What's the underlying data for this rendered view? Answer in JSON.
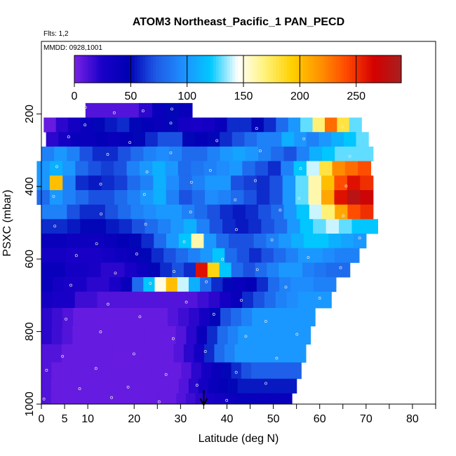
{
  "chart_data": {
    "type": "heatmap",
    "title": "ATOM3 Northeast_Pacific_1 PAN_PECD",
    "note_flights": "Flts: 1,2",
    "note_dates": "MMDD: 0928,1001",
    "xlabel": "Latitude (deg N)",
    "ylabel": "PSXC (mbar)",
    "xlim": [
      0,
      85
    ],
    "ylim": [
      1000,
      0
    ],
    "x_ticks": [
      0,
      5,
      10,
      20,
      30,
      40,
      50,
      60,
      70,
      80
    ],
    "y_ticks": [
      200,
      400,
      600,
      800,
      1000
    ],
    "colorbar": {
      "range": [
        0,
        290
      ],
      "ticks": [
        0,
        50,
        100,
        150,
        200,
        250
      ],
      "colors": [
        "#7a22e6",
        "#1a00c8",
        "#0000b4",
        "#1e5ae6",
        "#1e90ff",
        "#00c8ff",
        "#ffffff",
        "#fff27a",
        "#ffd000",
        "#ff9400",
        "#ff4800",
        "#d40000",
        "#a82020"
      ]
    },
    "arrow_latitude": 35,
    "rows": [
      {
        "p": 190,
        "x0": 9.5,
        "x1": 32.5,
        "v": [
          10,
          10,
          10,
          10,
          20,
          40,
          50,
          40
        ]
      },
      {
        "p": 230,
        "x0": 0.5,
        "x1": 69,
        "v": [
          5,
          20,
          30,
          40,
          50,
          55,
          60,
          50,
          45,
          40,
          50,
          30,
          25,
          30,
          40,
          60,
          60,
          50,
          60,
          80,
          100,
          130,
          170,
          230,
          180,
          130
        ]
      },
      {
        "p": 270,
        "x0": 1,
        "x1": 70.5,
        "v": [
          20,
          30,
          40,
          40,
          45,
          40,
          45,
          50,
          60,
          70,
          70,
          50,
          45,
          50,
          60,
          70,
          80,
          90,
          90,
          110,
          100,
          90,
          100,
          110,
          120,
          130
        ]
      },
      {
        "p": 310,
        "x0": 0,
        "x1": 71.5,
        "v": [
          90,
          100,
          90,
          70,
          60,
          60,
          70,
          80,
          90,
          95,
          90,
          80,
          80,
          90,
          100,
          105,
          100,
          90,
          80,
          70,
          90,
          110,
          120,
          130,
          130,
          130
        ]
      },
      {
        "p": 350,
        "x0": -1,
        "x1": 71,
        "v": [
          100,
          110,
          100,
          80,
          70,
          65,
          70,
          90,
          100,
          110,
          100,
          80,
          85,
          90,
          95,
          100,
          80,
          70,
          60,
          90,
          120,
          140,
          180,
          220,
          230,
          240
        ]
      },
      {
        "p": 390,
        "x0": -1,
        "x1": 71.5,
        "v": [
          100,
          200,
          90,
          60,
          55,
          60,
          65,
          80,
          90,
          110,
          95,
          80,
          90,
          100,
          100,
          70,
          65,
          60,
          70,
          100,
          130,
          160,
          200,
          240,
          260,
          250
        ]
      },
      {
        "p": 430,
        "x0": -1,
        "x1": 71.5,
        "v": [
          80,
          100,
          90,
          80,
          70,
          70,
          80,
          90,
          100,
          110,
          90,
          70,
          80,
          95,
          90,
          80,
          70,
          60,
          70,
          100,
          130,
          160,
          210,
          260,
          280,
          270
        ]
      },
      {
        "p": 470,
        "x0": 0,
        "x1": 71.5,
        "v": [
          90,
          90,
          70,
          60,
          60,
          70,
          80,
          90,
          95,
          100,
          100,
          90,
          80,
          70,
          60,
          55,
          60,
          70,
          80,
          100,
          120,
          140,
          170,
          210,
          240,
          250
        ]
      },
      {
        "p": 510,
        "x0": 0,
        "x1": 72.5,
        "v": [
          60,
          60,
          55,
          50,
          50,
          55,
          60,
          70,
          80,
          90,
          100,
          110,
          90,
          70,
          60,
          55,
          60,
          70,
          80,
          100,
          120,
          130,
          140,
          130,
          120,
          120
        ]
      },
      {
        "p": 550,
        "x0": 0,
        "x1": 70,
        "v": [
          40,
          40,
          35,
          35,
          35,
          40,
          45,
          50,
          60,
          80,
          100,
          120,
          160,
          100,
          80,
          70,
          70,
          80,
          90,
          100,
          110,
          120,
          120,
          110,
          105,
          100
        ]
      },
      {
        "p": 590,
        "x0": 0,
        "x1": 68.5,
        "v": [
          30,
          30,
          25,
          25,
          25,
          30,
          35,
          40,
          50,
          60,
          70,
          80,
          90,
          100,
          120,
          80,
          70,
          60,
          70,
          80,
          90,
          100,
          100,
          95,
          90,
          90
        ]
      },
      {
        "p": 630,
        "x0": 0,
        "x1": 66.5,
        "v": [
          40,
          40,
          30,
          30,
          25,
          20,
          20,
          25,
          35,
          50,
          60,
          70,
          60,
          260,
          190,
          120,
          80,
          70,
          80,
          90,
          100,
          100,
          90,
          85,
          80,
          80
        ]
      },
      {
        "p": 670,
        "x0": 0,
        "x1": 63.5,
        "v": [
          40,
          30,
          25,
          25,
          20,
          20,
          25,
          40,
          80,
          120,
          150,
          200,
          140,
          110,
          80,
          60,
          50,
          40,
          45,
          60,
          80,
          90,
          95,
          95,
          90,
          90
        ]
      },
      {
        "p": 710,
        "x0": 0,
        "x1": 62.5,
        "v": [
          30,
          25,
          25,
          15,
          15,
          10,
          10,
          10,
          10,
          10,
          10,
          10,
          10,
          10,
          15,
          20,
          30,
          40,
          60,
          70,
          80,
          90,
          95,
          100,
          100,
          100
        ]
      },
      {
        "p": 760,
        "x0": 0,
        "x1": 59,
        "v": [
          20,
          15,
          10,
          5,
          5,
          5,
          5,
          5,
          5,
          5,
          5,
          5,
          10,
          15,
          20,
          30,
          50,
          70,
          80,
          90,
          100,
          100,
          100,
          100,
          100,
          100
        ]
      },
      {
        "p": 810,
        "x0": 0,
        "x1": 58,
        "v": [
          20,
          15,
          10,
          5,
          5,
          5,
          5,
          5,
          5,
          5,
          5,
          5,
          5,
          10,
          20,
          40,
          60,
          80,
          90,
          100,
          100,
          100,
          100,
          100,
          100,
          100
        ]
      },
      {
        "p": 860,
        "x0": 0,
        "x1": 57,
        "v": [
          10,
          10,
          5,
          5,
          5,
          5,
          5,
          5,
          5,
          5,
          5,
          5,
          5,
          10,
          20,
          30,
          60,
          80,
          90,
          100,
          100,
          100,
          100,
          100,
          100,
          100
        ]
      },
      {
        "p": 910,
        "x0": 0,
        "x1": 56,
        "v": [
          10,
          5,
          5,
          5,
          5,
          5,
          5,
          5,
          5,
          5,
          5,
          5,
          5,
          5,
          10,
          20,
          30,
          40,
          50,
          60,
          70,
          75,
          75,
          75,
          75,
          75
        ]
      },
      {
        "p": 950,
        "x0": 0,
        "x1": 55,
        "v": [
          10,
          5,
          5,
          5,
          5,
          5,
          5,
          5,
          5,
          5,
          5,
          5,
          5,
          5,
          10,
          20,
          30,
          40,
          45,
          50,
          55,
          55,
          55,
          55,
          55,
          55
        ]
      },
      {
        "p": 990,
        "x0": 0,
        "x1": 54,
        "v": [
          10,
          5,
          5,
          5,
          5,
          5,
          5,
          5,
          5,
          5,
          5,
          5,
          5,
          5,
          10,
          15,
          20,
          25,
          30,
          35,
          40,
          40,
          40,
          40,
          40,
          40
        ]
      }
    ]
  }
}
